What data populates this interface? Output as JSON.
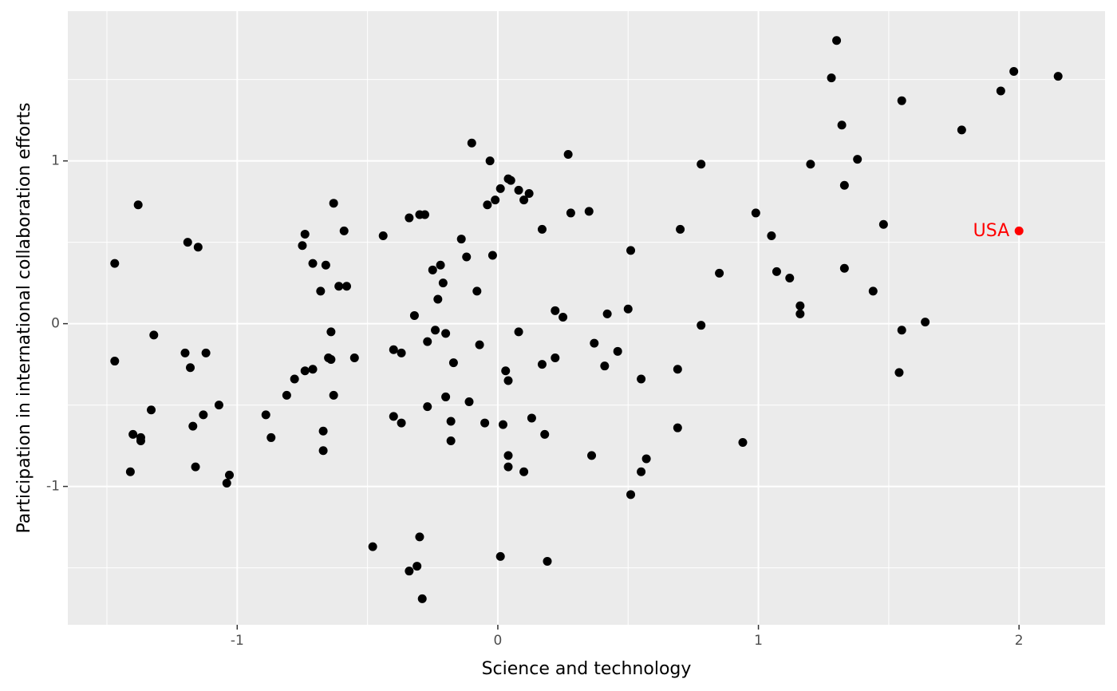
{
  "chart_data": {
    "type": "scatter",
    "title": "",
    "xlabel": "Science and technology",
    "ylabel": "Participation in international collaboration efforts",
    "xlim": [
      -1.65,
      2.33
    ],
    "ylim": [
      -1.85,
      1.92
    ],
    "x_ticks": [
      -1,
      0,
      1,
      2
    ],
    "x_tick_labels": [
      "-1",
      "0",
      "1",
      "2"
    ],
    "y_ticks": [
      -1,
      0,
      1
    ],
    "y_tick_labels": [
      "-1",
      "0",
      "1"
    ],
    "x_minor": [
      -1.5,
      -0.5,
      0.5,
      1.5
    ],
    "y_minor": [
      -1.5,
      -0.5,
      0.5,
      1.5
    ],
    "grid": true,
    "panel_color": "#EBEBEB",
    "grid_color": "#FFFFFF",
    "point_color": "#000000",
    "points": [
      [
        -1.47,
        0.37
      ],
      [
        -1.47,
        -0.23
      ],
      [
        -1.38,
        0.73
      ],
      [
        -1.4,
        -0.68
      ],
      [
        -1.41,
        -0.91
      ],
      [
        -1.37,
        -0.7
      ],
      [
        -1.37,
        -0.72
      ],
      [
        -1.32,
        -0.07
      ],
      [
        -1.33,
        -0.53
      ],
      [
        -1.19,
        0.5
      ],
      [
        -1.15,
        0.47
      ],
      [
        -1.2,
        -0.18
      ],
      [
        -1.18,
        -0.27
      ],
      [
        -1.17,
        -0.63
      ],
      [
        -1.12,
        -0.18
      ],
      [
        -1.13,
        -0.56
      ],
      [
        -1.16,
        -0.88
      ],
      [
        -1.07,
        -0.5
      ],
      [
        -1.04,
        -0.98
      ],
      [
        -1.03,
        -0.93
      ],
      [
        -0.89,
        -0.56
      ],
      [
        -0.87,
        -0.7
      ],
      [
        -0.81,
        -0.44
      ],
      [
        -0.78,
        -0.34
      ],
      [
        -0.75,
        0.48
      ],
      [
        -0.74,
        0.55
      ],
      [
        -0.74,
        -0.29
      ],
      [
        -0.71,
        0.37
      ],
      [
        -0.71,
        -0.28
      ],
      [
        -0.68,
        0.2
      ],
      [
        -0.67,
        -0.66
      ],
      [
        -0.67,
        -0.78
      ],
      [
        -0.66,
        0.36
      ],
      [
        -0.65,
        -0.21
      ],
      [
        -0.64,
        -0.05
      ],
      [
        -0.64,
        -0.22
      ],
      [
        -0.63,
        0.74
      ],
      [
        -0.63,
        -0.44
      ],
      [
        -0.61,
        0.23
      ],
      [
        -0.59,
        0.57
      ],
      [
        -0.58,
        0.23
      ],
      [
        -0.55,
        -0.21
      ],
      [
        -0.48,
        -1.37
      ],
      [
        -0.44,
        0.54
      ],
      [
        -0.4,
        -0.16
      ],
      [
        -0.4,
        -0.57
      ],
      [
        -0.37,
        -0.18
      ],
      [
        -0.37,
        -0.61
      ],
      [
        -0.34,
        0.65
      ],
      [
        -0.34,
        -1.52
      ],
      [
        -0.32,
        0.05
      ],
      [
        -0.31,
        -1.49
      ],
      [
        -0.3,
        0.67
      ],
      [
        -0.3,
        -1.31
      ],
      [
        -0.28,
        0.67
      ],
      [
        -0.29,
        -1.69
      ],
      [
        -0.27,
        -0.11
      ],
      [
        -0.27,
        -0.51
      ],
      [
        -0.25,
        0.33
      ],
      [
        -0.24,
        -0.04
      ],
      [
        -0.23,
        0.15
      ],
      [
        -0.22,
        0.36
      ],
      [
        -0.21,
        0.25
      ],
      [
        -0.2,
        -0.06
      ],
      [
        -0.2,
        -0.45
      ],
      [
        -0.18,
        -0.6
      ],
      [
        -0.18,
        -0.72
      ],
      [
        -0.17,
        -0.24
      ],
      [
        -0.14,
        0.52
      ],
      [
        -0.12,
        0.41
      ],
      [
        -0.11,
        -0.48
      ],
      [
        -0.1,
        1.11
      ],
      [
        -0.08,
        0.2
      ],
      [
        -0.07,
        -0.13
      ],
      [
        -0.05,
        -0.61
      ],
      [
        -0.04,
        0.73
      ],
      [
        -0.03,
        1.0
      ],
      [
        -0.02,
        0.42
      ],
      [
        -0.01,
        0.76
      ],
      [
        0.01,
        0.83
      ],
      [
        0.02,
        -0.62
      ],
      [
        0.01,
        -1.43
      ],
      [
        0.03,
        -0.29
      ],
      [
        0.04,
        -0.35
      ],
      [
        0.04,
        0.89
      ],
      [
        0.05,
        0.88
      ],
      [
        0.04,
        -0.81
      ],
      [
        0.04,
        -0.88
      ],
      [
        0.08,
        0.82
      ],
      [
        0.08,
        -0.05
      ],
      [
        0.1,
        0.76
      ],
      [
        0.1,
        -0.91
      ],
      [
        0.12,
        0.8
      ],
      [
        0.13,
        -0.58
      ],
      [
        0.17,
        0.58
      ],
      [
        0.17,
        -0.25
      ],
      [
        0.18,
        -0.68
      ],
      [
        0.19,
        -1.46
      ],
      [
        0.22,
        0.08
      ],
      [
        0.22,
        -0.21
      ],
      [
        0.25,
        0.04
      ],
      [
        0.27,
        1.04
      ],
      [
        0.28,
        0.68
      ],
      [
        0.35,
        0.69
      ],
      [
        0.36,
        -0.81
      ],
      [
        0.37,
        -0.12
      ],
      [
        0.41,
        -0.26
      ],
      [
        0.42,
        0.06
      ],
      [
        0.46,
        -0.17
      ],
      [
        0.5,
        0.09
      ],
      [
        0.51,
        0.45
      ],
      [
        0.51,
        -1.05
      ],
      [
        0.55,
        -0.34
      ],
      [
        0.55,
        -0.91
      ],
      [
        0.57,
        -0.83
      ],
      [
        0.69,
        -0.28
      ],
      [
        0.69,
        -0.64
      ],
      [
        0.7,
        0.58
      ],
      [
        0.78,
        0.98
      ],
      [
        0.78,
        -0.01
      ],
      [
        0.85,
        0.31
      ],
      [
        0.94,
        -0.73
      ],
      [
        0.99,
        0.68
      ],
      [
        1.05,
        0.54
      ],
      [
        1.07,
        0.32
      ],
      [
        1.12,
        0.28
      ],
      [
        1.16,
        0.11
      ],
      [
        1.16,
        0.06
      ],
      [
        1.2,
        0.98
      ],
      [
        1.28,
        1.51
      ],
      [
        1.3,
        1.74
      ],
      [
        1.32,
        1.22
      ],
      [
        1.33,
        0.85
      ],
      [
        1.33,
        0.34
      ],
      [
        1.38,
        1.01
      ],
      [
        1.44,
        0.2
      ],
      [
        1.48,
        0.61
      ],
      [
        1.54,
        -0.3
      ],
      [
        1.55,
        1.37
      ],
      [
        1.55,
        -0.04
      ],
      [
        1.64,
        0.01
      ],
      [
        1.78,
        1.19
      ],
      [
        1.93,
        1.43
      ],
      [
        1.98,
        1.55
      ],
      [
        2.15,
        1.52
      ]
    ],
    "highlight": {
      "label": "USA",
      "x": 2.0,
      "y": 0.57,
      "color": "#FF0000"
    }
  }
}
